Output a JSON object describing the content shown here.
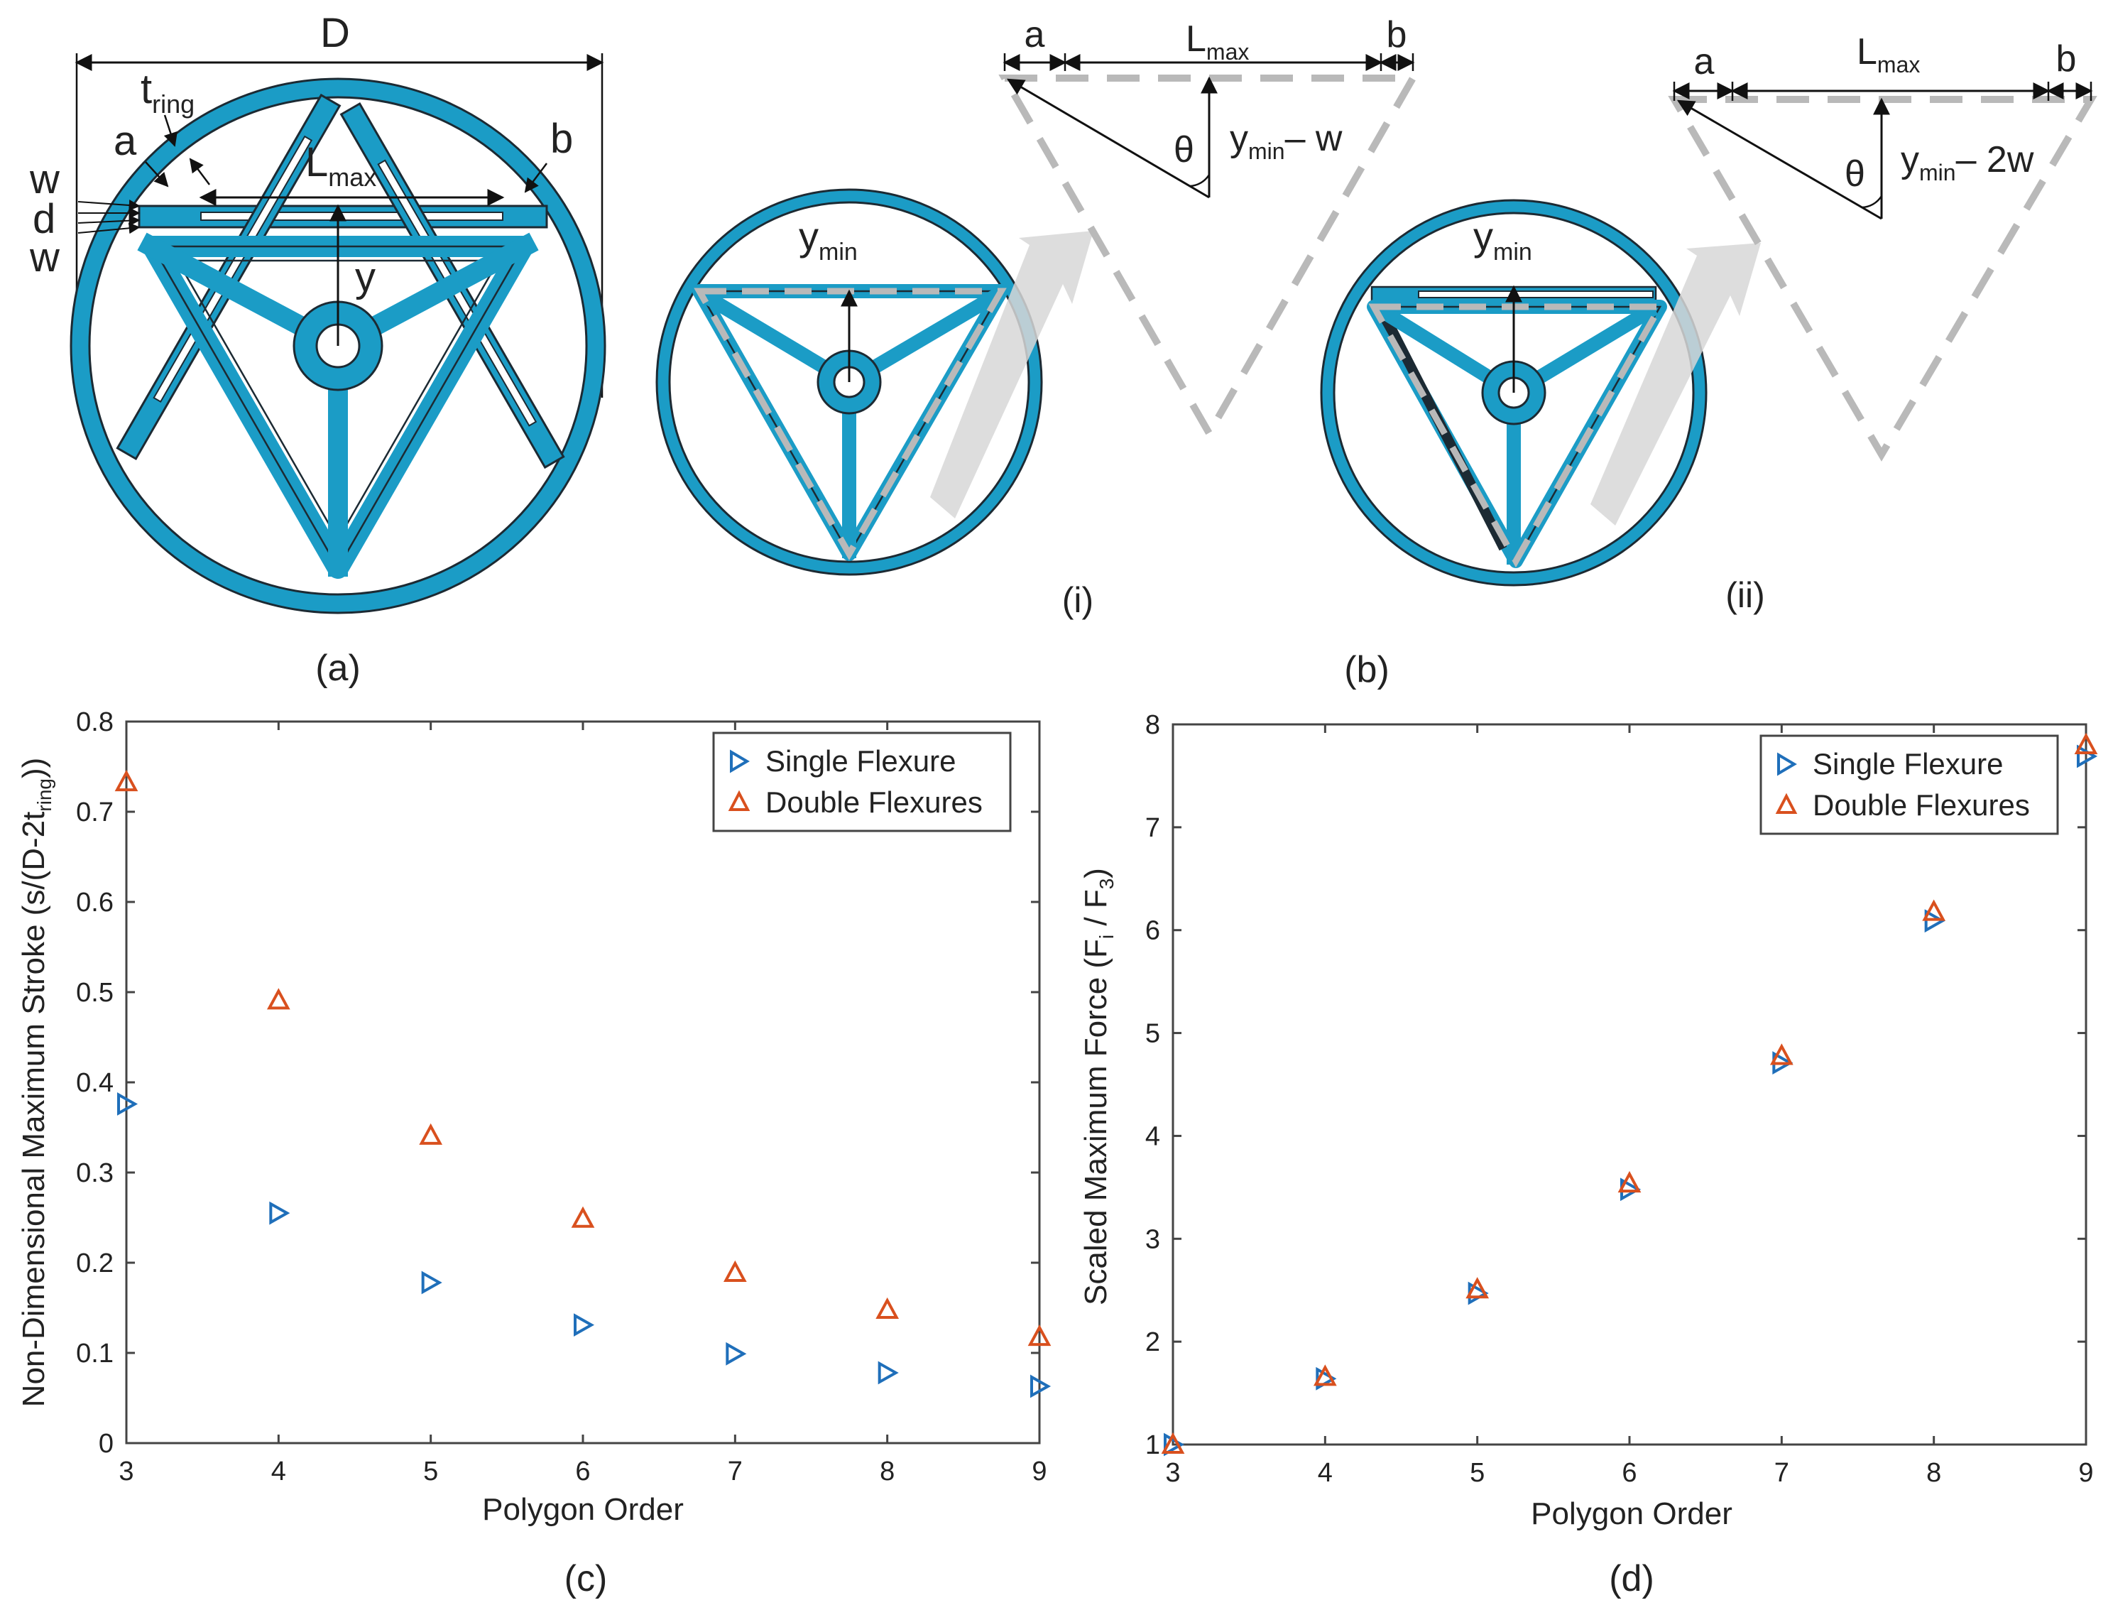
{
  "colors": {
    "teal": "#1b9cc6",
    "outline": "#1c2a33",
    "dash": "#b9b9b9",
    "single_marker": "#1f6fba",
    "double_marker": "#d9501e",
    "axes": "#444444"
  },
  "diagrams": {
    "a": {
      "caption": "(a)",
      "D": "D",
      "t": "t",
      "t_sub": "ring",
      "a": "a",
      "b": "b",
      "L": "L",
      "L_sub": "max",
      "y": "y",
      "w_top": "w",
      "d": "d",
      "w_bottom": "w"
    },
    "b": {
      "caption": "(b)",
      "i": {
        "label": "(i)",
        "ymin": "y",
        "ymin_sub": "min",
        "a": "a",
        "b": "b",
        "L": "L",
        "L_sub": "max",
        "theta": "θ",
        "expr_y": "y",
        "expr_sub": "min",
        "expr_rest": "– w"
      },
      "ii": {
        "label": "(ii)",
        "ymin": "y",
        "ymin_sub": "min",
        "a": "a",
        "b": "b",
        "L": "L",
        "L_sub": "max",
        "theta": "θ",
        "expr_y": "y",
        "expr_sub": "min",
        "expr_rest": "– 2w"
      }
    }
  },
  "chart_data": [
    {
      "id": "c",
      "type": "scatter",
      "caption": "(c)",
      "xlabel": "Polygon Order",
      "ylabel": "Non-Dimensional Maximum Stroke (s/(D-2t",
      "ylabel_sub": "ring",
      "ylabel_end": "))",
      "xlim": [
        3,
        9
      ],
      "ylim": [
        0,
        0.8
      ],
      "xticks": [
        3,
        4,
        5,
        6,
        7,
        8,
        9
      ],
      "yticks": [
        0,
        0.1,
        0.2,
        0.3,
        0.4,
        0.5,
        0.6,
        0.7,
        0.8
      ],
      "ytick_labels": [
        "0",
        "0.1",
        "0.2",
        "0.3",
        "0.4",
        "0.5",
        "0.6",
        "0.7",
        "0.8"
      ],
      "legend_position": "top-right",
      "series": [
        {
          "name": "Single Flexure",
          "marker": "triangle-right",
          "x": [
            3,
            4,
            5,
            6,
            7,
            8,
            9
          ],
          "y": [
            0.376,
            0.255,
            0.178,
            0.131,
            0.099,
            0.078,
            0.063
          ]
        },
        {
          "name": "Double Flexures",
          "marker": "triangle-up",
          "x": [
            3,
            4,
            5,
            6,
            7,
            8,
            9
          ],
          "y": [
            0.733,
            0.491,
            0.341,
            0.249,
            0.189,
            0.148,
            0.118
          ]
        }
      ]
    },
    {
      "id": "d",
      "type": "scatter",
      "caption": "(d)",
      "xlabel": "Polygon Order",
      "ylabel": "Scaled Maximum Force (F",
      "ylabel_sub": "i",
      "ylabel_mid": " / F",
      "ylabel_sub2": "3",
      "ylabel_end": ")",
      "xlim": [
        3,
        9
      ],
      "ylim": [
        1,
        8
      ],
      "xticks": [
        3,
        4,
        5,
        6,
        7,
        8,
        9
      ],
      "yticks": [
        1,
        2,
        3,
        4,
        5,
        6,
        7,
        8
      ],
      "ytick_labels": [
        "1",
        "2",
        "3",
        "4",
        "5",
        "6",
        "7",
        "8"
      ],
      "legend_position": "top-right",
      "series": [
        {
          "name": "Single Flexure",
          "marker": "triangle-right",
          "x": [
            3,
            4,
            5,
            6,
            7,
            8,
            9
          ],
          "y": [
            1.0,
            1.64,
            2.47,
            3.48,
            4.71,
            6.09,
            7.69
          ]
        },
        {
          "name": "Double Flexures",
          "marker": "triangle-up",
          "x": [
            3,
            4,
            5,
            6,
            7,
            8,
            9
          ],
          "y": [
            1.0,
            1.66,
            2.51,
            3.54,
            4.78,
            6.18,
            7.8
          ]
        }
      ]
    }
  ]
}
